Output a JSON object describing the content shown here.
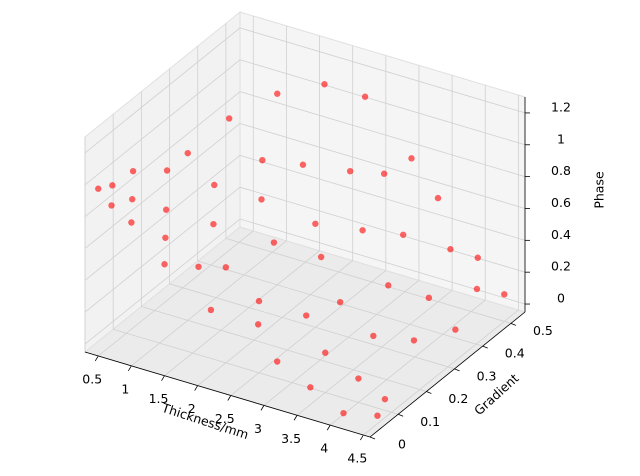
{
  "chart_data": {
    "type": "scatter3d",
    "xlabel": "Thickness/mm",
    "ylabel": "Gradient",
    "zlabel": "Phase",
    "xlim": [
      0.3,
      4.6
    ],
    "ylim": [
      0,
      0.55
    ],
    "zlim": [
      -0.05,
      1.3
    ],
    "xticks": [
      0.5,
      1.0,
      1.5,
      2.0,
      2.5,
      3.0,
      3.5,
      4.0,
      4.5
    ],
    "yticks": [
      0.0,
      0.1,
      0.2,
      0.3,
      0.4,
      0.5
    ],
    "zticks": [
      0.0,
      0.2,
      0.4,
      0.6,
      0.8,
      1.0,
      1.2
    ],
    "grid": true,
    "series": [
      {
        "color": "#ff0000",
        "x": [
          0.5,
          0.5,
          0.6,
          0.7,
          0.8,
          0.9,
          1.0,
          1.0,
          1.1,
          1.2,
          1.3,
          1.4,
          1.5,
          1.5,
          1.6,
          1.7,
          1.8,
          1.9,
          2.0,
          2.0,
          2.1,
          2.2,
          2.3,
          2.4,
          2.5,
          2.5,
          2.6,
          2.7,
          2.8,
          2.9,
          3.0,
          3.0,
          3.1,
          3.2,
          3.3,
          3.4,
          3.5,
          3.5,
          3.6,
          3.7,
          3.8,
          3.9,
          4.0,
          4.0,
          4.1,
          4.2,
          4.2,
          4.3,
          4.4,
          4.4,
          4.5,
          4.5
        ],
        "y": [
          0.0,
          0.05,
          0.1,
          0.0,
          0.05,
          0.15,
          0.0,
          0.2,
          0.1,
          0.3,
          0.05,
          0.2,
          0.4,
          0.0,
          0.15,
          0.3,
          0.05,
          0.25,
          0.45,
          0.1,
          0.35,
          0.0,
          0.2,
          0.5,
          0.1,
          0.3,
          0.4,
          0.05,
          0.25,
          0.45,
          0.15,
          0.35,
          0.5,
          0.0,
          0.2,
          0.4,
          0.1,
          0.5,
          0.3,
          0.0,
          0.2,
          0.45,
          0.1,
          0.35,
          0.5,
          0.0,
          0.25,
          0.45,
          0.1,
          0.35,
          0.05,
          0.5
        ],
        "z": [
          1.0,
          0.95,
          0.98,
          0.92,
          0.9,
          0.95,
          0.85,
          1.0,
          0.8,
          1.1,
          0.72,
          0.85,
          1.15,
          0.65,
          0.7,
          0.9,
          0.6,
          0.75,
          1.2,
          0.55,
          0.85,
          0.45,
          0.6,
          1.1,
          0.4,
          0.6,
          0.8,
          0.35,
          0.5,
          0.75,
          0.3,
          0.55,
          0.8,
          0.25,
          0.35,
          0.5,
          0.2,
          0.6,
          0.35,
          0.15,
          0.2,
          0.4,
          0.1,
          0.25,
          0.3,
          0.05,
          0.15,
          0.2,
          0.02,
          0.1,
          0.0,
          0.12
        ]
      }
    ]
  }
}
